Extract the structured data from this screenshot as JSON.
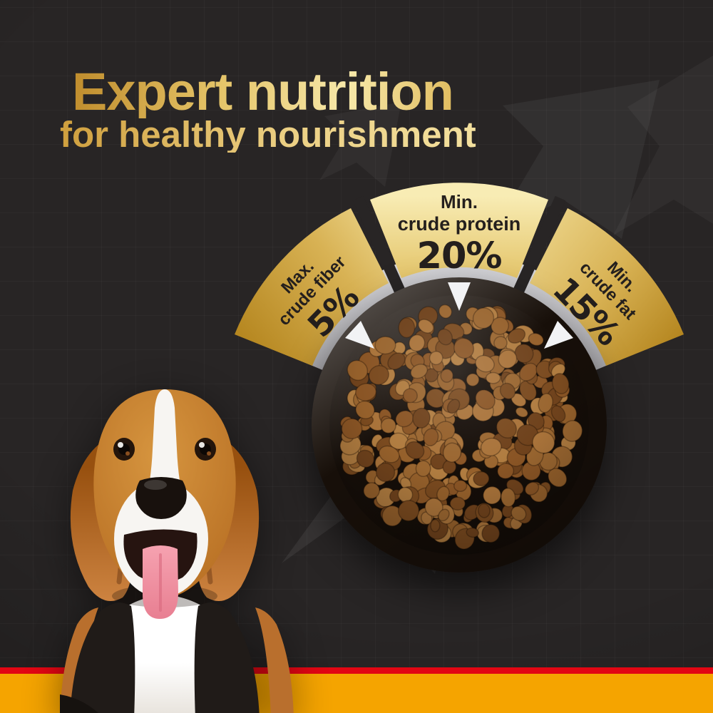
{
  "header": {
    "title": "Expert nutrition",
    "subtitle": "for healthy nourishment"
  },
  "gauge": {
    "segments": [
      {
        "id": "fiber",
        "qualifier": "Max.",
        "nutrient": "crude fiber",
        "value": "5%"
      },
      {
        "id": "protein",
        "qualifier": "Min.",
        "nutrient": "crude protein",
        "value": "20%"
      },
      {
        "id": "fat",
        "qualifier": "Min.",
        "nutrient": "crude fat",
        "value": "15%"
      }
    ]
  },
  "colors": {
    "background": "#282525",
    "gold_dark": "#b8882b",
    "gold_light": "#f8ecb4",
    "label_text": "#241f1d",
    "ring_gray": "#b5b4b8",
    "stripe_red": "#e20613",
    "stripe_yellow": "#f5a400"
  }
}
